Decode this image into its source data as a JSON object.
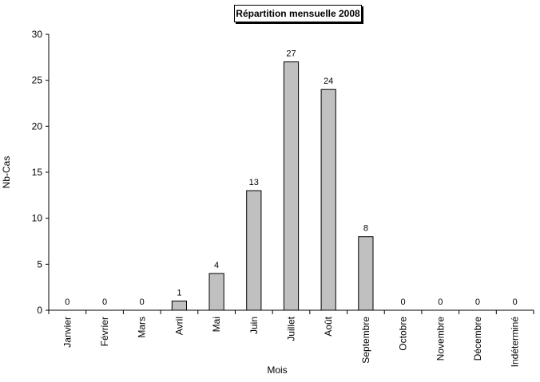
{
  "chart_data": {
    "type": "bar",
    "title": "Répartition mensuelle 2008",
    "xlabel": "Mois",
    "ylabel": "Nb-Cas",
    "ylim": [
      0,
      30
    ],
    "yticks": [
      0,
      5,
      10,
      15,
      20,
      25,
      30
    ],
    "categories": [
      "Janvier",
      "Février",
      "Mars",
      "Avril",
      "Mai",
      "Juin",
      "Juillet",
      "Août",
      "Septembre",
      "Octobre",
      "Novembre",
      "Décembre",
      "Indéterminé"
    ],
    "values": [
      0,
      0,
      0,
      1,
      4,
      13,
      27,
      24,
      8,
      0,
      0,
      0,
      0
    ],
    "data_labels": true,
    "grid": false,
    "bar_color": "#c0c0c0",
    "bar_edge_color": "#000000"
  }
}
